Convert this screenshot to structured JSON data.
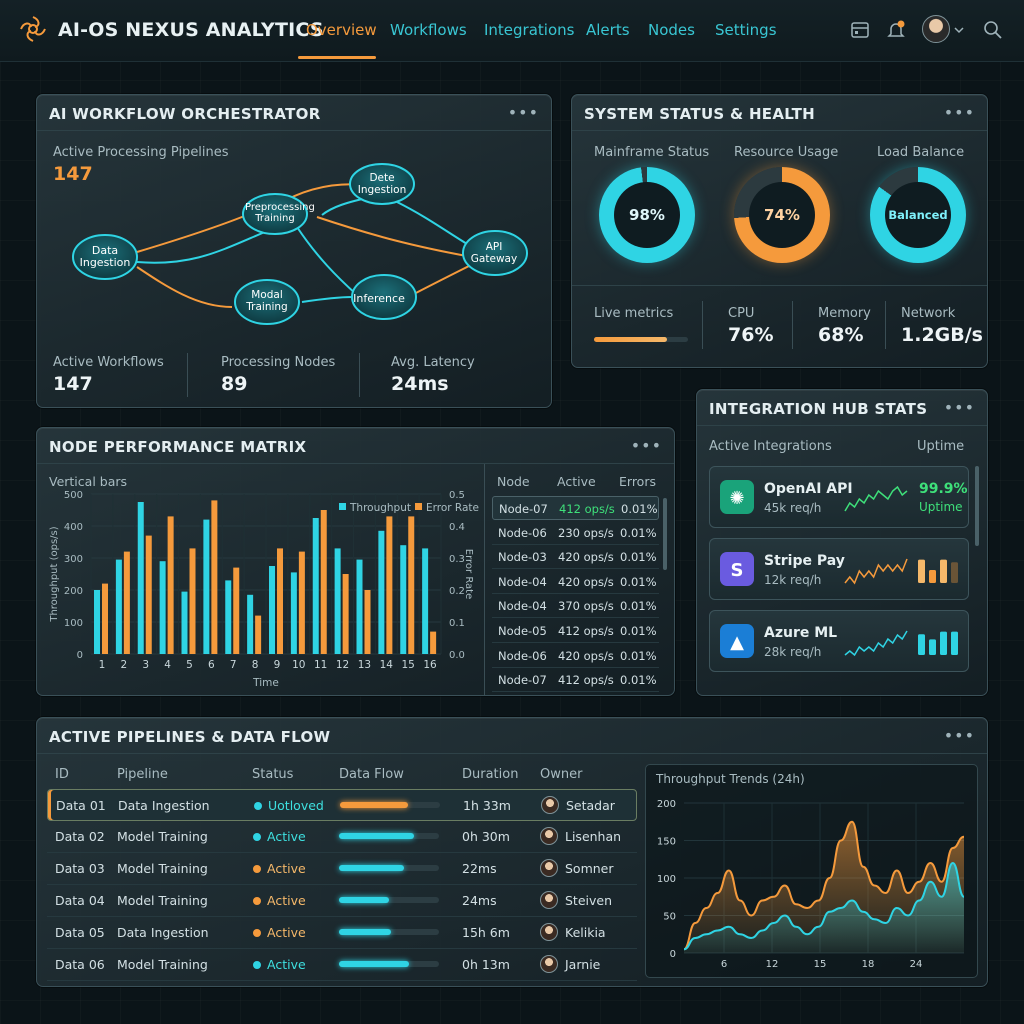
{
  "app": {
    "title": "AI-OS NEXUS ANALYTICS",
    "nav": [
      "Overview",
      "Workflows",
      "Integrations",
      "Alerts",
      "Nodes",
      "Settings"
    ],
    "active_nav": "Overview"
  },
  "orchestrator": {
    "title": "AI WORKFLOW ORCHESTRATOR",
    "pipelines_label": "Active Processing Pipelines",
    "pipelines_value": "147",
    "nodes": [
      "Data Ingestion",
      "Preprocessing Training",
      "Dete Ingestion",
      "API Gateway",
      "Modal Training",
      "Inference"
    ],
    "stats": [
      {
        "label": "Active Workflows",
        "value": "147"
      },
      {
        "label": "Processing Nodes",
        "value": "89"
      },
      {
        "label": "Avg. Latency",
        "value": "24ms"
      }
    ]
  },
  "status": {
    "title": "SYSTEM STATUS & HEALTH",
    "gauges": [
      {
        "label": "Mainframe Status",
        "value": "98%",
        "pct": 98,
        "color": "#2fd4e4"
      },
      {
        "label": "Resource Usage",
        "value": "74%",
        "pct": 74,
        "color": "#f59a3c"
      },
      {
        "label": "Load Balance",
        "value": "Balanced",
        "pct": 85,
        "color": "#2fd4e4"
      }
    ],
    "live_label": "Live metrics",
    "live_pct": 0.78,
    "metrics": [
      {
        "label": "CPU",
        "value": "76%"
      },
      {
        "label": "Memory",
        "value": "68%"
      },
      {
        "label": "Network",
        "value": "1.2GB/s"
      }
    ]
  },
  "integrations": {
    "title": "INTEGRATION HUB STATS",
    "col_left": "Active Integrations",
    "col_right": "Uptime",
    "items": [
      {
        "name": "OpenAI API",
        "sub": "45k req/h",
        "uptime": "99.9%",
        "uptime_label": "Uptime",
        "icon": "openai-icon",
        "color": "#1aa37a",
        "spark": [
          4,
          6,
          5,
          7,
          6,
          8,
          7,
          9,
          8,
          7,
          9,
          10,
          8,
          9
        ],
        "bars": []
      },
      {
        "name": "Stripe Pay",
        "sub": "12k req/h",
        "uptime": "",
        "uptime_label": "",
        "icon": "stripe-icon",
        "color": "#6a5be0",
        "spark": [
          4,
          5,
          4,
          6,
          5,
          6,
          5,
          7,
          6,
          7,
          6,
          7,
          6,
          8
        ],
        "bars": [
          0.9,
          0.5,
          0.9,
          0.8
        ]
      },
      {
        "name": "Azure ML",
        "sub": "28k req/h",
        "uptime": "",
        "uptime_label": "",
        "icon": "azure-icon",
        "color": "#1b7ed6",
        "spark": [
          3,
          4,
          3,
          5,
          4,
          5,
          4,
          6,
          5,
          7,
          6,
          8,
          7,
          9
        ],
        "bars": [
          0.8,
          0.6,
          0.9,
          0.9
        ]
      }
    ]
  },
  "node_perf": {
    "title": "NODE PERFORMANCE MATRIX",
    "subtitle": "Vertical bars",
    "table_headers": [
      "Node",
      "Active",
      "Errors"
    ],
    "table_rows": [
      {
        "node": "Node-07",
        "active": "412 ops/s",
        "errors": "0.01%"
      },
      {
        "node": "Node-06",
        "active": "230 ops/s",
        "errors": "0.01%"
      },
      {
        "node": "Node-03",
        "active": "420 ops/s",
        "errors": "0.01%"
      },
      {
        "node": "Node-04",
        "active": "420 ops/s",
        "errors": "0.01%"
      },
      {
        "node": "Node-04",
        "active": "370 ops/s",
        "errors": "0.01%"
      },
      {
        "node": "Node-05",
        "active": "412 ops/s",
        "errors": "0.01%"
      },
      {
        "node": "Node-06",
        "active": "420 ops/s",
        "errors": "0.01%"
      },
      {
        "node": "Node-07",
        "active": "412 ops/s",
        "errors": "0.01%"
      }
    ]
  },
  "pipelines": {
    "title": "ACTIVE PIPELINES & DATA FLOW",
    "headers": [
      "ID",
      "Pipeline",
      "Status",
      "Data Flow",
      "Duration",
      "Owner"
    ],
    "rows": [
      {
        "id": "Data 01",
        "pipeline": "Data Ingestion",
        "status": "Uotloved",
        "dot": "#2fd4e4",
        "flow": 0.68,
        "flow_color": "#f59a3c",
        "duration": "1h 33m",
        "owner": "Setadar"
      },
      {
        "id": "Data 02",
        "pipeline": "Model Training",
        "status": "Active",
        "dot": "#2fd4e4",
        "flow": 0.75,
        "flow_color": "#2fd4e4",
        "duration": "0h 30m",
        "owner": "Lisenhan"
      },
      {
        "id": "Data 03",
        "pipeline": "Model Training",
        "status": "Active",
        "dot": "#f59a3c",
        "flow": 0.65,
        "flow_color": "#2fd4e4",
        "duration": "22ms",
        "owner": "Somner"
      },
      {
        "id": "Data 04",
        "pipeline": "Model Training",
        "status": "Active",
        "dot": "#f59a3c",
        "flow": 0.5,
        "flow_color": "#2fd4e4",
        "duration": "24ms",
        "owner": "Steiven"
      },
      {
        "id": "Data 05",
        "pipeline": "Data Ingestion",
        "status": "Active",
        "dot": "#f59a3c",
        "flow": 0.52,
        "flow_color": "#2fd4e4",
        "duration": "15h 6m",
        "owner": "Kelikia"
      },
      {
        "id": "Data 06",
        "pipeline": "Model Training",
        "status": "Active",
        "dot": "#2fd4e4",
        "flow": 0.7,
        "flow_color": "#2fd4e4",
        "duration": "0h 13m",
        "owner": "Jarnie"
      }
    ]
  },
  "chart_data": [
    {
      "type": "bar",
      "title": "",
      "xlabel": "Time",
      "ylabel": "Throughput (ops/s)",
      "y2label": "Error Rate",
      "categories": [
        "1",
        "2",
        "3",
        "4",
        "5",
        "6",
        "7",
        "8",
        "9",
        "10",
        "11",
        "12",
        "13",
        "14",
        "15",
        "16"
      ],
      "ylim": [
        0,
        500
      ],
      "y2lim": [
        0,
        0.5
      ],
      "legend": "top-right",
      "series": [
        {
          "name": "Throughput",
          "color": "#2fd4e4",
          "values": [
            200,
            295,
            475,
            290,
            195,
            420,
            230,
            185,
            275,
            255,
            425,
            330,
            295,
            385,
            340,
            330
          ]
        },
        {
          "name": "Error Rate",
          "color": "#f59a3c",
          "values": [
            0.22,
            0.32,
            0.37,
            0.43,
            0.33,
            0.48,
            0.27,
            0.12,
            0.33,
            0.32,
            0.45,
            0.25,
            0.2,
            0.43,
            0.43,
            0.07
          ]
        }
      ]
    },
    {
      "type": "area",
      "title": "Throughput Trends (24h)",
      "xticks": [
        "6",
        "12",
        "15",
        "18",
        "24"
      ],
      "ylim": [
        0,
        200
      ],
      "yticks": [
        0,
        50,
        100,
        150,
        200
      ],
      "series": [
        {
          "name": "",
          "color": "#f59a3c",
          "values": [
            5,
            40,
            60,
            80,
            110,
            70,
            50,
            70,
            75,
            90,
            65,
            60,
            70,
            100,
            150,
            175,
            115,
            90,
            80,
            110,
            80,
            95,
            120,
            95,
            140,
            155
          ]
        },
        {
          "name": "",
          "color": "#2fd4e4",
          "values": [
            5,
            20,
            25,
            30,
            35,
            25,
            20,
            30,
            40,
            50,
            35,
            25,
            35,
            55,
            60,
            70,
            55,
            45,
            40,
            60,
            50,
            70,
            95,
            75,
            120,
            75
          ]
        }
      ]
    }
  ]
}
